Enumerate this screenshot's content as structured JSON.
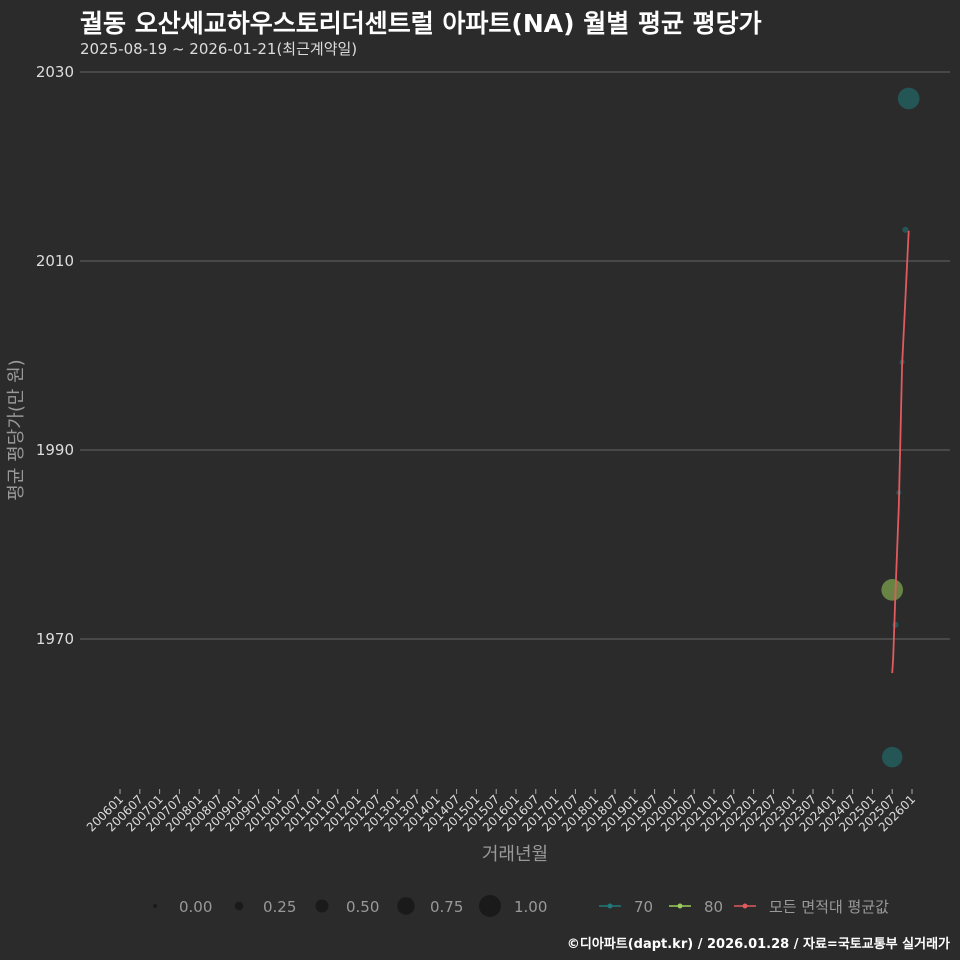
{
  "title": "궐동 오산세교하우스토리더센트럴 아파트(NA) 월별 평균 평당가",
  "subtitle": "2025-08-19 ~ 2026-01-21(최근계약일)",
  "credit": "©디아파트(dapt.kr) / 2026.01.28 / 자료=국토교통부 실거래가",
  "chart_data": {
    "type": "scatter",
    "xlabel": "거래년월",
    "ylabel": "평균 평당가(만 원)",
    "ylim": [
      1952,
      2033
    ],
    "yticks": [
      1970,
      1990,
      2010,
      2030
    ],
    "xticks": [
      "200601",
      "200607",
      "200701",
      "200707",
      "200801",
      "200807",
      "200901",
      "200907",
      "201001",
      "201007",
      "201101",
      "201107",
      "201201",
      "201207",
      "201301",
      "201307",
      "201401",
      "201407",
      "201501",
      "201507",
      "201601",
      "201607",
      "201701",
      "201707",
      "201801",
      "201807",
      "201901",
      "201907",
      "202001",
      "202007",
      "202101",
      "202107",
      "202201",
      "202207",
      "202301",
      "202307",
      "202401",
      "202407",
      "202501",
      "202507",
      "202601"
    ],
    "grid": true,
    "colors": {
      "70": "#1f7a7a",
      "80": "#9acd5a",
      "line": "#e05a5f"
    },
    "points": [
      {
        "month": "202507",
        "value": 1957.5,
        "area": "70",
        "size": 0.75
      },
      {
        "month": "202507",
        "value": 1975.2,
        "area": "80",
        "size": 0.8
      },
      {
        "month": "202508",
        "value": 1971.5,
        "area": "70",
        "size": 0.1
      },
      {
        "month": "202509",
        "value": 1985.5,
        "area": "70",
        "size": 0.05
      },
      {
        "month": "202510",
        "value": 1999.3,
        "area": "70",
        "size": 0.05
      },
      {
        "month": "202511",
        "value": 2013.3,
        "area": "70",
        "size": 0.1
      },
      {
        "month": "202512",
        "value": 2027.2,
        "area": "70",
        "size": 0.8
      }
    ],
    "line": {
      "name": "모든 면적대 평균값",
      "x": [
        "202507",
        "202507.3",
        "202508",
        "202509",
        "202510",
        "202511",
        "202512"
      ],
      "values": [
        1966.4,
        1968,
        1975,
        1984,
        1999,
        2006,
        2013.2
      ]
    },
    "legend": {
      "position": "bottom",
      "size_labels": [
        "0.00",
        "0.25",
        "0.50",
        "0.75",
        "1.00"
      ],
      "color_labels": [
        "70",
        "80",
        "모든 면적대 평균값"
      ]
    }
  }
}
